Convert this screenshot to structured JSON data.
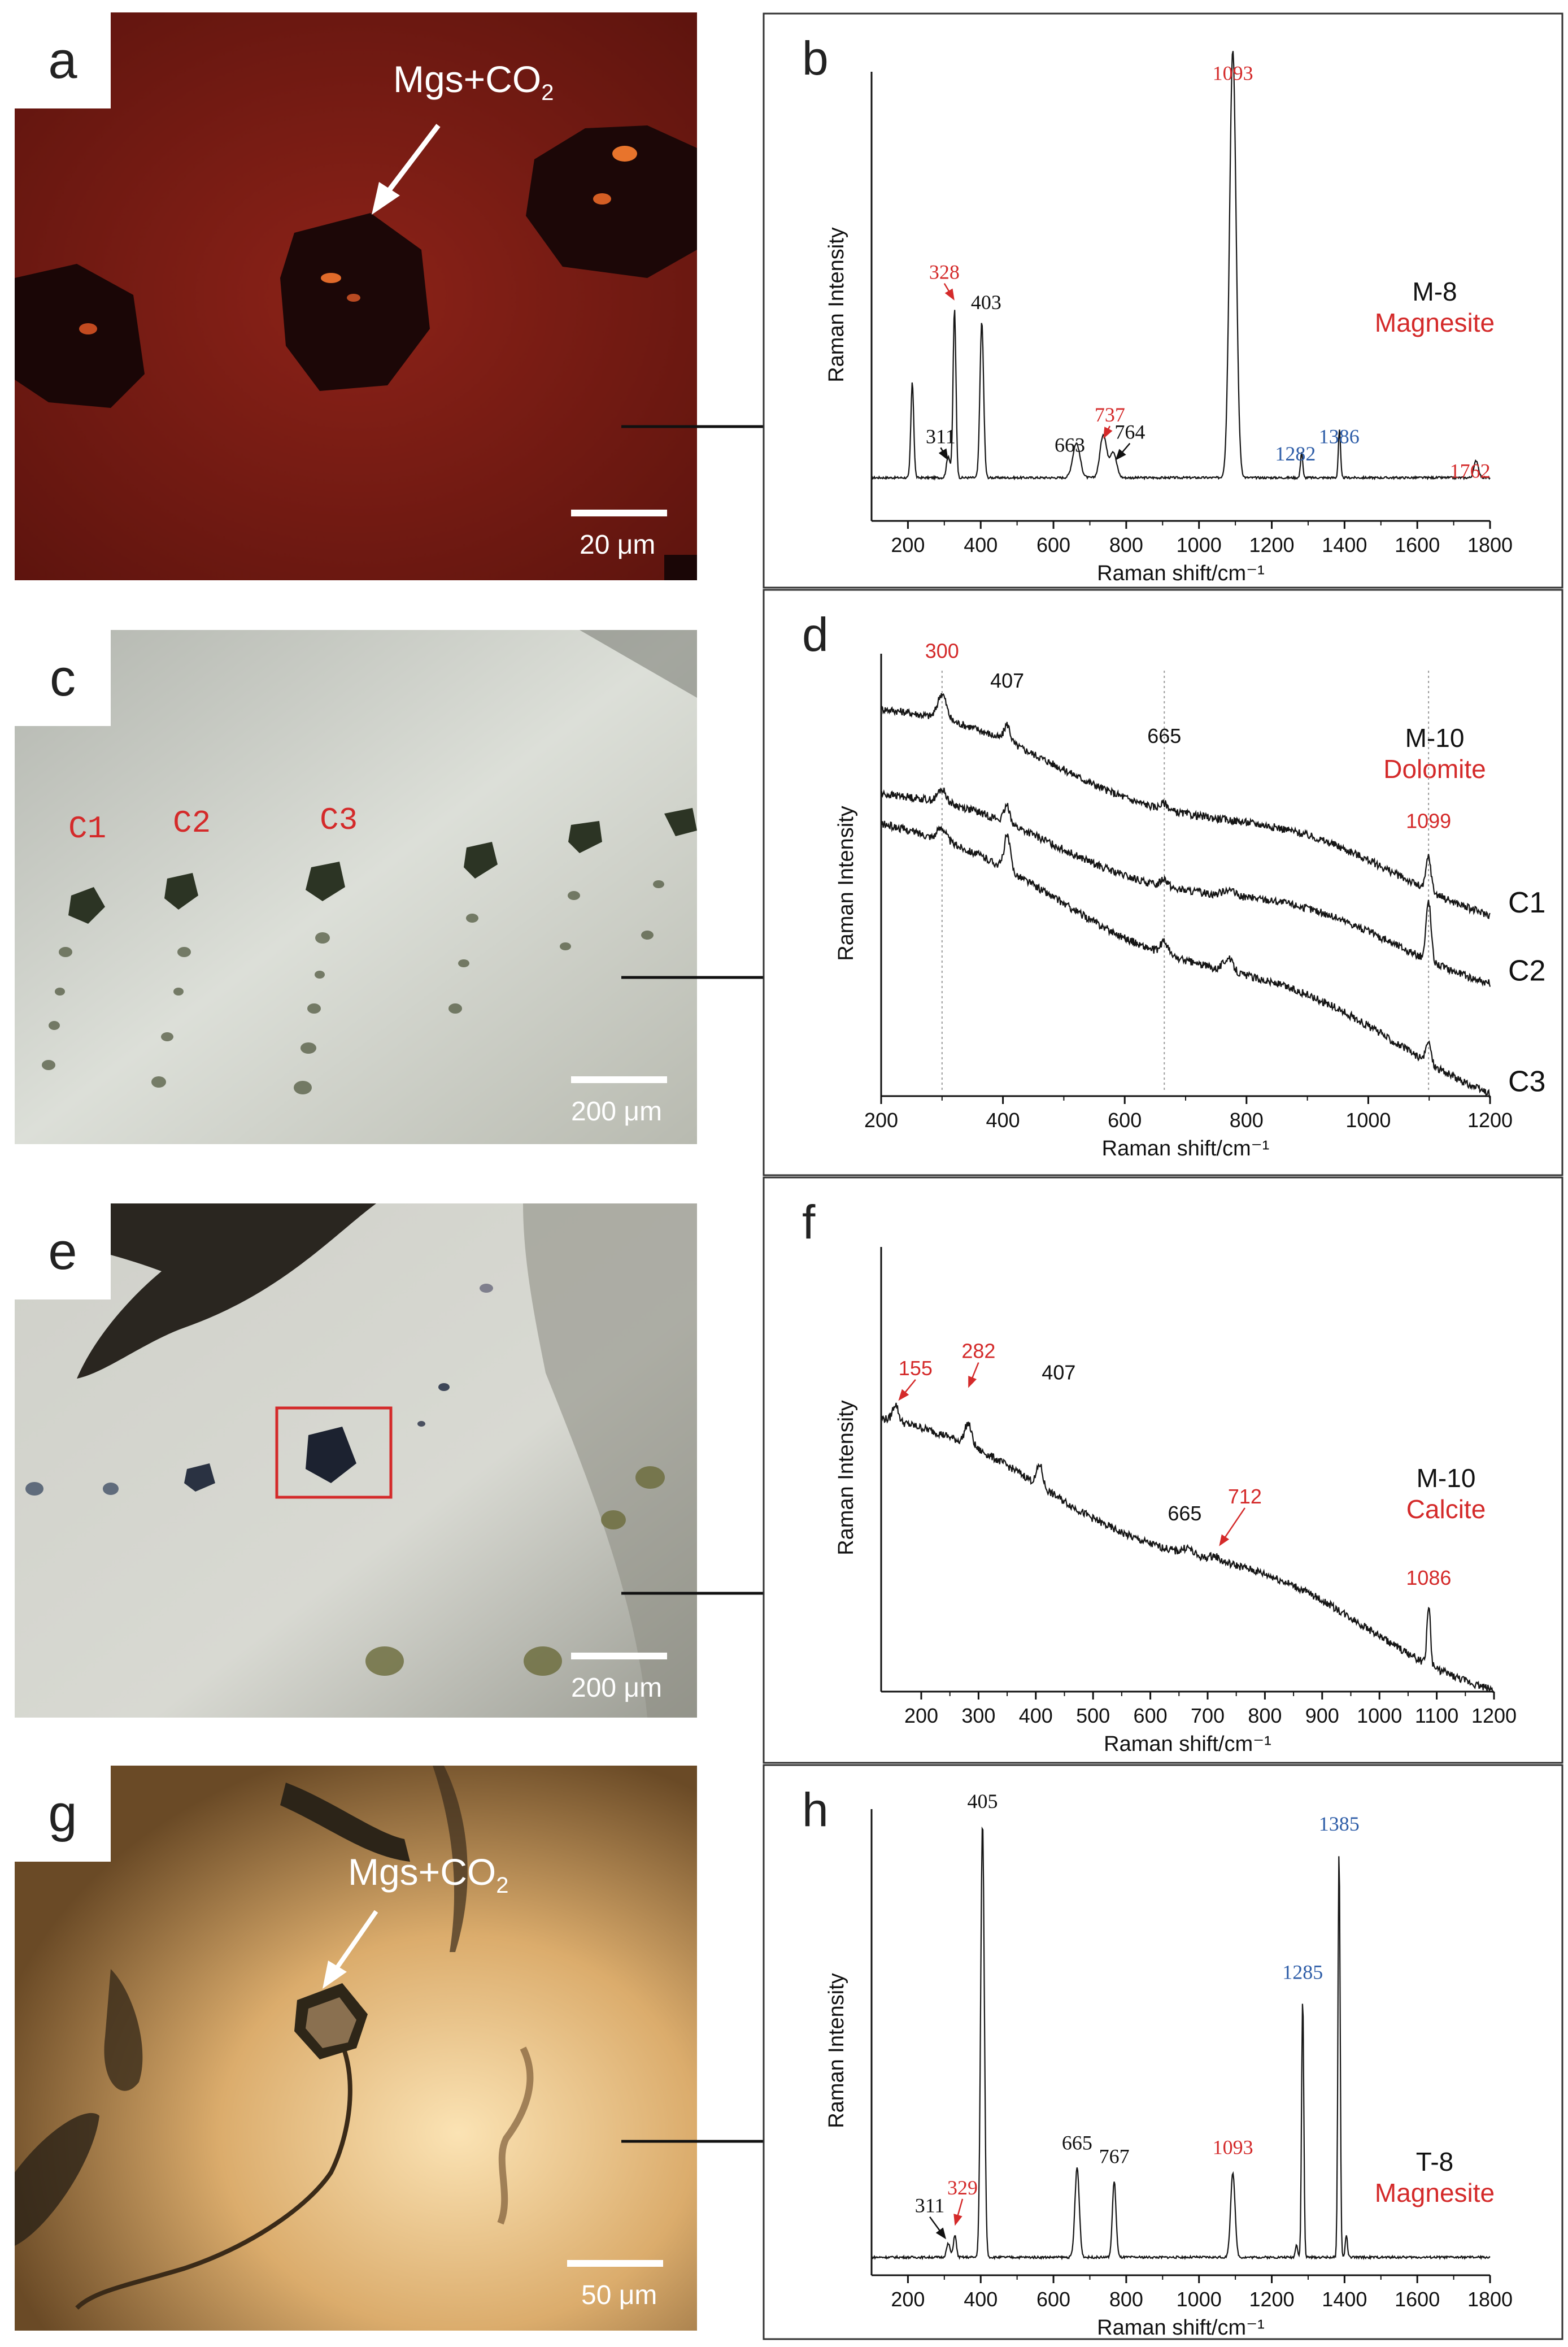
{
  "panels": {
    "a": {
      "letter": "a",
      "annotation": "Mgs+CO",
      "annotation_sub": "2",
      "scale": "20 μm"
    },
    "c": {
      "letter": "c",
      "labels": [
        "C1",
        "C2",
        "C3"
      ],
      "scale": "200 μm"
    },
    "e": {
      "letter": "e",
      "scale": "200 μm"
    },
    "g": {
      "letter": "g",
      "annotation": "Mgs+CO",
      "annotation_sub": "2",
      "scale": "50 μm"
    }
  },
  "colors": {
    "red": "#d42a2a",
    "blue": "#2f5ea8",
    "line": "#111111",
    "grid": "#9a9a9a"
  },
  "chart_data": [
    {
      "id": "b",
      "letter": "b",
      "type": "line",
      "sample": "M-8",
      "mineral": "Magnesite",
      "xlabel": "Raman shift/cm⁻¹",
      "ylabel": "Raman Intensity",
      "xlim": [
        100,
        1800
      ],
      "ylim": [
        0,
        100
      ],
      "xticks": [
        200,
        400,
        600,
        800,
        1000,
        1200,
        1400,
        1600,
        1800
      ],
      "style": "serif",
      "series": [
        {
          "baseline": 10,
          "peaks": [
            {
              "x": 212,
              "h": 22,
              "w": 4
            },
            {
              "x": 311,
              "h": 5,
              "w": 5
            },
            {
              "x": 328,
              "h": 39,
              "w": 4
            },
            {
              "x": 403,
              "h": 36,
              "w": 5
            },
            {
              "x": 663,
              "h": 8,
              "w": 10
            },
            {
              "x": 737,
              "h": 10,
              "w": 9
            },
            {
              "x": 764,
              "h": 6,
              "w": 9
            },
            {
              "x": 1093,
              "h": 99,
              "w": 9
            },
            {
              "x": 1282,
              "h": 6,
              "w": 3
            },
            {
              "x": 1386,
              "h": 11,
              "w": 3
            },
            {
              "x": 1762,
              "h": 4,
              "w": 6
            }
          ]
        }
      ],
      "annotations": [
        {
          "text": "1093",
          "x": 1093,
          "y": 102,
          "color": "red"
        },
        {
          "text": "328",
          "x": 300,
          "y": 56,
          "color": "red",
          "arrow_to": [
            328,
            51
          ]
        },
        {
          "text": "403",
          "x": 415,
          "y": 49,
          "color": "black"
        },
        {
          "text": "311",
          "x": 290,
          "y": 18,
          "color": "black",
          "arrow_to": [
            311,
            14
          ]
        },
        {
          "text": "663",
          "x": 645,
          "y": 16,
          "color": "black"
        },
        {
          "text": "737",
          "x": 755,
          "y": 23,
          "color": "red",
          "arrow_to": [
            737,
            19
          ]
        },
        {
          "text": "764",
          "x": 810,
          "y": 19,
          "color": "black",
          "arrow_to": [
            770,
            14
          ]
        },
        {
          "text": "1282",
          "x": 1265,
          "y": 14,
          "color": "blue"
        },
        {
          "text": "1386",
          "x": 1385,
          "y": 18,
          "color": "blue"
        },
        {
          "text": "1762",
          "x": 1745,
          "y": 10,
          "color": "red"
        }
      ]
    },
    {
      "id": "d",
      "letter": "d",
      "type": "line",
      "sample": "M-10",
      "mineral": "Dolomite",
      "xlabel": "Raman shift/cm⁻¹",
      "ylabel": "Raman Intensity",
      "xlim": [
        200,
        1200
      ],
      "ylim": [
        0,
        100
      ],
      "xticks": [
        200,
        400,
        600,
        800,
        1000,
        1200
      ],
      "style": "sans",
      "series": [
        {
          "name": "C1",
          "start": 91,
          "end": 45,
          "peaks": [
            {
              "x": 300,
              "h": 6,
              "w": 7
            },
            {
              "x": 407,
              "h": 4,
              "w": 5
            },
            {
              "x": 665,
              "h": 1.5,
              "w": 6
            },
            {
              "x": 1099,
              "h": 8,
              "w": 4
            }
          ]
        },
        {
          "name": "C2",
          "start": 71,
          "end": 29,
          "peaks": [
            {
              "x": 300,
              "h": 3,
              "w": 7
            },
            {
              "x": 407,
              "h": 4,
              "w": 5
            },
            {
              "x": 665,
              "h": 2,
              "w": 6
            },
            {
              "x": 770,
              "h": 1.5,
              "w": 8
            },
            {
              "x": 1099,
              "h": 14,
              "w": 4
            }
          ]
        },
        {
          "name": "C3",
          "start": 64,
          "end": 3,
          "peaks": [
            {
              "x": 300,
              "h": 3,
              "w": 7
            },
            {
              "x": 407,
              "h": 8,
              "w": 5
            },
            {
              "x": 665,
              "h": 3,
              "w": 6
            },
            {
              "x": 770,
              "h": 3,
              "w": 8
            },
            {
              "x": 1099,
              "h": 5,
              "w": 4
            }
          ]
        }
      ],
      "vlines": [
        300,
        665,
        1099
      ],
      "annotations": [
        {
          "text": "300",
          "x": 300,
          "y": 103,
          "color": "red"
        },
        {
          "text": "407",
          "x": 407,
          "y": 96,
          "color": "black"
        },
        {
          "text": "665",
          "x": 665,
          "y": 83,
          "color": "black"
        },
        {
          "text": "1099",
          "x": 1099,
          "y": 63,
          "color": "red"
        }
      ]
    },
    {
      "id": "f",
      "letter": "f",
      "type": "line",
      "sample": "M-10",
      "mineral": "Calcite",
      "xlabel": "Raman shift/cm⁻¹",
      "ylabel": "Raman Intensity",
      "xlim": [
        130,
        1200
      ],
      "ylim": [
        0,
        100
      ],
      "xticks": [
        200,
        300,
        400,
        500,
        600,
        700,
        800,
        900,
        1000,
        1100,
        1200
      ],
      "style": "sans",
      "series": [
        {
          "start": 64,
          "end": 2,
          "peaks": [
            {
              "x": 155,
              "h": 4,
              "w": 5
            },
            {
              "x": 282,
              "h": 5,
              "w": 6
            },
            {
              "x": 407,
              "h": 5,
              "w": 5
            },
            {
              "x": 665,
              "h": 1.5,
              "w": 8
            },
            {
              "x": 712,
              "h": 1,
              "w": 8
            },
            {
              "x": 1086,
              "h": 14,
              "w": 3
            }
          ]
        }
      ],
      "annotations": [
        {
          "text": "155",
          "x": 190,
          "y": 74,
          "color": "red",
          "arrow_to": [
            160,
            68
          ]
        },
        {
          "text": "282",
          "x": 300,
          "y": 78,
          "color": "red",
          "arrow_to": [
            282,
            71
          ]
        },
        {
          "text": "407",
          "x": 440,
          "y": 73,
          "color": "black"
        },
        {
          "text": "665",
          "x": 660,
          "y": 40,
          "color": "black"
        },
        {
          "text": "712",
          "x": 765,
          "y": 44,
          "color": "red",
          "arrow_to": [
            720,
            34
          ]
        },
        {
          "text": "1086",
          "x": 1086,
          "y": 25,
          "color": "red"
        }
      ]
    },
    {
      "id": "h",
      "letter": "h",
      "type": "line",
      "sample": "T-8",
      "mineral": "Magnesite",
      "xlabel": "Raman shift/cm⁻¹",
      "ylabel": "Raman Intensity",
      "xlim": [
        100,
        1800
      ],
      "ylim": [
        0,
        100
      ],
      "xticks": [
        200,
        400,
        600,
        800,
        1000,
        1200,
        1400,
        1600,
        1800
      ],
      "style": "serif",
      "series": [
        {
          "baseline": 4,
          "peaks": [
            {
              "x": 311,
              "h": 3,
              "w": 5
            },
            {
              "x": 329,
              "h": 5,
              "w": 4
            },
            {
              "x": 405,
              "h": 97,
              "w": 5
            },
            {
              "x": 665,
              "h": 20,
              "w": 6
            },
            {
              "x": 767,
              "h": 17,
              "w": 5
            },
            {
              "x": 1093,
              "h": 19,
              "w": 6
            },
            {
              "x": 1268,
              "h": 3,
              "w": 3
            },
            {
              "x": 1285,
              "h": 58,
              "w": 3
            },
            {
              "x": 1385,
              "h": 91,
              "w": 3
            },
            {
              "x": 1405,
              "h": 5,
              "w": 3
            }
          ]
        }
      ],
      "annotations": [
        {
          "text": "405",
          "x": 405,
          "y": 104,
          "color": "black"
        },
        {
          "text": "1385",
          "x": 1385,
          "y": 99,
          "color": "blue"
        },
        {
          "text": "1285",
          "x": 1285,
          "y": 66,
          "color": "blue"
        },
        {
          "text": "665",
          "x": 665,
          "y": 28,
          "color": "black"
        },
        {
          "text": "767",
          "x": 767,
          "y": 25,
          "color": "black"
        },
        {
          "text": "1093",
          "x": 1093,
          "y": 27,
          "color": "red"
        },
        {
          "text": "311",
          "x": 260,
          "y": 14,
          "color": "black",
          "arrow_to": [
            305,
            8
          ]
        },
        {
          "text": "329",
          "x": 350,
          "y": 18,
          "color": "red",
          "arrow_to": [
            329,
            11
          ]
        }
      ]
    }
  ]
}
